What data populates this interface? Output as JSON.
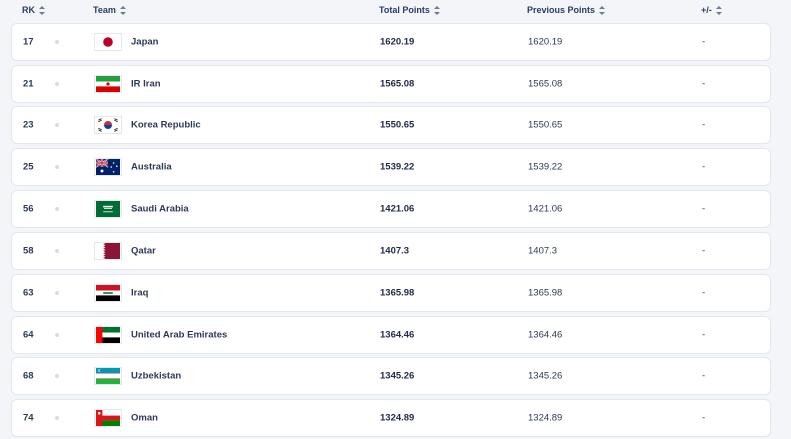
{
  "header": {
    "rk": "RK",
    "team": "Team",
    "total_points": "Total Points",
    "previous_points": "Previous Points",
    "diff": "+/-"
  },
  "rows": [
    {
      "rk": "17",
      "team": "Japan",
      "total": "1620.19",
      "previous": "1620.19",
      "diff": "-",
      "flag": "japan-flag-icon"
    },
    {
      "rk": "21",
      "team": "IR Iran",
      "total": "1565.08",
      "previous": "1565.08",
      "diff": "-",
      "flag": "iran-flag-icon"
    },
    {
      "rk": "23",
      "team": "Korea Republic",
      "total": "1550.65",
      "previous": "1550.65",
      "diff": "-",
      "flag": "korea-flag-icon"
    },
    {
      "rk": "25",
      "team": "Australia",
      "total": "1539.22",
      "previous": "1539.22",
      "diff": "-",
      "flag": "australia-flag-icon"
    },
    {
      "rk": "56",
      "team": "Saudi Arabia",
      "total": "1421.06",
      "previous": "1421.06",
      "diff": "-",
      "flag": "saudi-arabia-flag-icon"
    },
    {
      "rk": "58",
      "team": "Qatar",
      "total": "1407.3",
      "previous": "1407.3",
      "diff": "-",
      "flag": "qatar-flag-icon"
    },
    {
      "rk": "63",
      "team": "Iraq",
      "total": "1365.98",
      "previous": "1365.98",
      "diff": "-",
      "flag": "iraq-flag-icon"
    },
    {
      "rk": "64",
      "team": "United Arab Emirates",
      "total": "1364.46",
      "previous": "1364.46",
      "diff": "-",
      "flag": "uae-flag-icon"
    },
    {
      "rk": "68",
      "team": "Uzbekistan",
      "total": "1345.26",
      "previous": "1345.26",
      "diff": "-",
      "flag": "uzbekistan-flag-icon"
    },
    {
      "rk": "74",
      "team": "Oman",
      "total": "1324.89",
      "previous": "1324.89",
      "diff": "-",
      "flag": "oman-flag-icon"
    }
  ]
}
